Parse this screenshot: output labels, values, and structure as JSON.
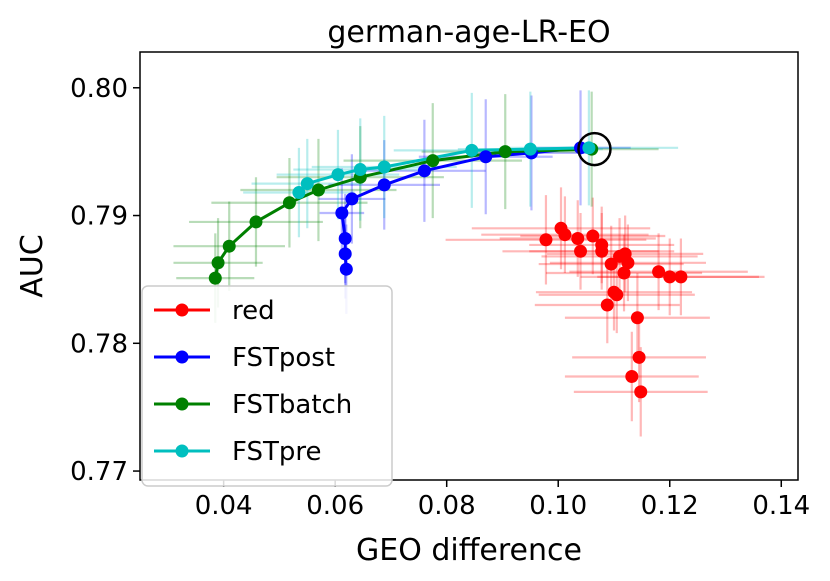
{
  "chart_data": {
    "type": "scatter",
    "title": "german-age-LR-EO",
    "xlabel": "GEO difference",
    "ylabel": "AUC",
    "xlim": [
      0.025,
      0.143
    ],
    "ylim": [
      0.7693,
      0.8028
    ],
    "x_ticks": [
      0.04,
      0.06,
      0.08,
      0.1,
      0.12,
      0.14
    ],
    "x_tick_labels": [
      "0.04",
      "0.06",
      "0.08",
      "0.10",
      "0.12",
      "0.14"
    ],
    "y_ticks": [
      0.77,
      0.78,
      0.79,
      0.8
    ],
    "y_tick_labels": [
      "0.77",
      "0.78",
      "0.79",
      "0.80"
    ],
    "grid": false,
    "legend_position": "lower-left",
    "highlight": {
      "x": 0.1065,
      "y": 0.7952,
      "marker": "open-circle",
      "color": "#000000"
    },
    "series": [
      {
        "name": "red",
        "color": "#ff0000",
        "connected": false,
        "points": [
          {
            "x": 0.0978,
            "y": 0.7881,
            "xerr": 0.018,
            "yerr": 0.0035
          },
          {
            "x": 0.1005,
            "y": 0.789,
            "xerr": 0.016,
            "yerr": 0.0032
          },
          {
            "x": 0.1012,
            "y": 0.7885,
            "xerr": 0.015,
            "yerr": 0.003
          },
          {
            "x": 0.1035,
            "y": 0.7882,
            "xerr": 0.014,
            "yerr": 0.003
          },
          {
            "x": 0.104,
            "y": 0.7872,
            "xerr": 0.014,
            "yerr": 0.003
          },
          {
            "x": 0.1062,
            "y": 0.7884,
            "xerr": 0.013,
            "yerr": 0.003
          },
          {
            "x": 0.1078,
            "y": 0.7877,
            "xerr": 0.013,
            "yerr": 0.003
          },
          {
            "x": 0.1078,
            "y": 0.7872,
            "xerr": 0.013,
            "yerr": 0.003
          },
          {
            "x": 0.1088,
            "y": 0.783,
            "xerr": 0.013,
            "yerr": 0.003
          },
          {
            "x": 0.1095,
            "y": 0.7862,
            "xerr": 0.013,
            "yerr": 0.003
          },
          {
            "x": 0.11,
            "y": 0.784,
            "xerr": 0.014,
            "yerr": 0.003
          },
          {
            "x": 0.1105,
            "y": 0.7838,
            "xerr": 0.014,
            "yerr": 0.003
          },
          {
            "x": 0.111,
            "y": 0.7868,
            "xerr": 0.014,
            "yerr": 0.003
          },
          {
            "x": 0.112,
            "y": 0.787,
            "xerr": 0.014,
            "yerr": 0.003
          },
          {
            "x": 0.1118,
            "y": 0.7855,
            "xerr": 0.014,
            "yerr": 0.003
          },
          {
            "x": 0.1125,
            "y": 0.7863,
            "xerr": 0.014,
            "yerr": 0.003
          },
          {
            "x": 0.1132,
            "y": 0.7774,
            "xerr": 0.012,
            "yerr": 0.0035
          },
          {
            "x": 0.1142,
            "y": 0.782,
            "xerr": 0.013,
            "yerr": 0.0035
          },
          {
            "x": 0.1145,
            "y": 0.7789,
            "xerr": 0.012,
            "yerr": 0.0035
          },
          {
            "x": 0.1148,
            "y": 0.7762,
            "xerr": 0.012,
            "yerr": 0.0035
          },
          {
            "x": 0.118,
            "y": 0.7856,
            "xerr": 0.016,
            "yerr": 0.003
          },
          {
            "x": 0.12,
            "y": 0.7852,
            "xerr": 0.016,
            "yerr": 0.003
          },
          {
            "x": 0.122,
            "y": 0.7852,
            "xerr": 0.015,
            "yerr": 0.003
          }
        ]
      },
      {
        "name": "FSTpost",
        "color": "#0000ff",
        "connected": true,
        "points": [
          {
            "x": 0.062,
            "y": 0.7858,
            "xerr": 0.001,
            "yerr": 0.0035
          },
          {
            "x": 0.0618,
            "y": 0.787,
            "xerr": 0.001,
            "yerr": 0.0035
          },
          {
            "x": 0.0618,
            "y": 0.7882,
            "xerr": 0.001,
            "yerr": 0.0035
          },
          {
            "x": 0.0612,
            "y": 0.7902,
            "xerr": 0.004,
            "yerr": 0.0035
          },
          {
            "x": 0.063,
            "y": 0.7913,
            "xerr": 0.006,
            "yerr": 0.0035
          },
          {
            "x": 0.0688,
            "y": 0.7924,
            "xerr": 0.01,
            "yerr": 0.0035
          },
          {
            "x": 0.076,
            "y": 0.7935,
            "xerr": 0.011,
            "yerr": 0.004
          },
          {
            "x": 0.087,
            "y": 0.7946,
            "xerr": 0.012,
            "yerr": 0.0045
          },
          {
            "x": 0.0952,
            "y": 0.7949,
            "xerr": 0.011,
            "yerr": 0.0045
          },
          {
            "x": 0.104,
            "y": 0.7953,
            "xerr": 0.009,
            "yerr": 0.0045
          }
        ]
      },
      {
        "name": "FSTbatch",
        "color": "#008000",
        "connected": true,
        "points": [
          {
            "x": 0.0385,
            "y": 0.7851,
            "xerr": 0.007,
            "yerr": 0.0035
          },
          {
            "x": 0.039,
            "y": 0.7863,
            "xerr": 0.008,
            "yerr": 0.0035
          },
          {
            "x": 0.041,
            "y": 0.7876,
            "xerr": 0.01,
            "yerr": 0.0035
          },
          {
            "x": 0.0458,
            "y": 0.7895,
            "xerr": 0.012,
            "yerr": 0.0035
          },
          {
            "x": 0.0518,
            "y": 0.791,
            "xerr": 0.014,
            "yerr": 0.0035
          },
          {
            "x": 0.057,
            "y": 0.792,
            "xerr": 0.014,
            "yerr": 0.004
          },
          {
            "x": 0.0645,
            "y": 0.793,
            "xerr": 0.015,
            "yerr": 0.004
          },
          {
            "x": 0.0775,
            "y": 0.7943,
            "xerr": 0.016,
            "yerr": 0.0045
          },
          {
            "x": 0.0905,
            "y": 0.795,
            "xerr": 0.015,
            "yerr": 0.0045
          },
          {
            "x": 0.106,
            "y": 0.7952,
            "xerr": 0.012,
            "yerr": 0.0045
          }
        ]
      },
      {
        "name": "FSTpre",
        "color": "#00bfbf",
        "connected": true,
        "points": [
          {
            "x": 0.0535,
            "y": 0.7918,
            "xerr": 0.01,
            "yerr": 0.0035
          },
          {
            "x": 0.055,
            "y": 0.7925,
            "xerr": 0.01,
            "yerr": 0.0035
          },
          {
            "x": 0.0605,
            "y": 0.7932,
            "xerr": 0.011,
            "yerr": 0.0035
          },
          {
            "x": 0.0645,
            "y": 0.7936,
            "xerr": 0.012,
            "yerr": 0.004
          },
          {
            "x": 0.0688,
            "y": 0.7938,
            "xerr": 0.013,
            "yerr": 0.004
          },
          {
            "x": 0.0845,
            "y": 0.7951,
            "xerr": 0.014,
            "yerr": 0.0045
          },
          {
            "x": 0.095,
            "y": 0.7952,
            "xerr": 0.013,
            "yerr": 0.0045
          },
          {
            "x": 0.1055,
            "y": 0.7953,
            "xerr": 0.016,
            "yerr": 0.0045
          }
        ]
      }
    ]
  }
}
